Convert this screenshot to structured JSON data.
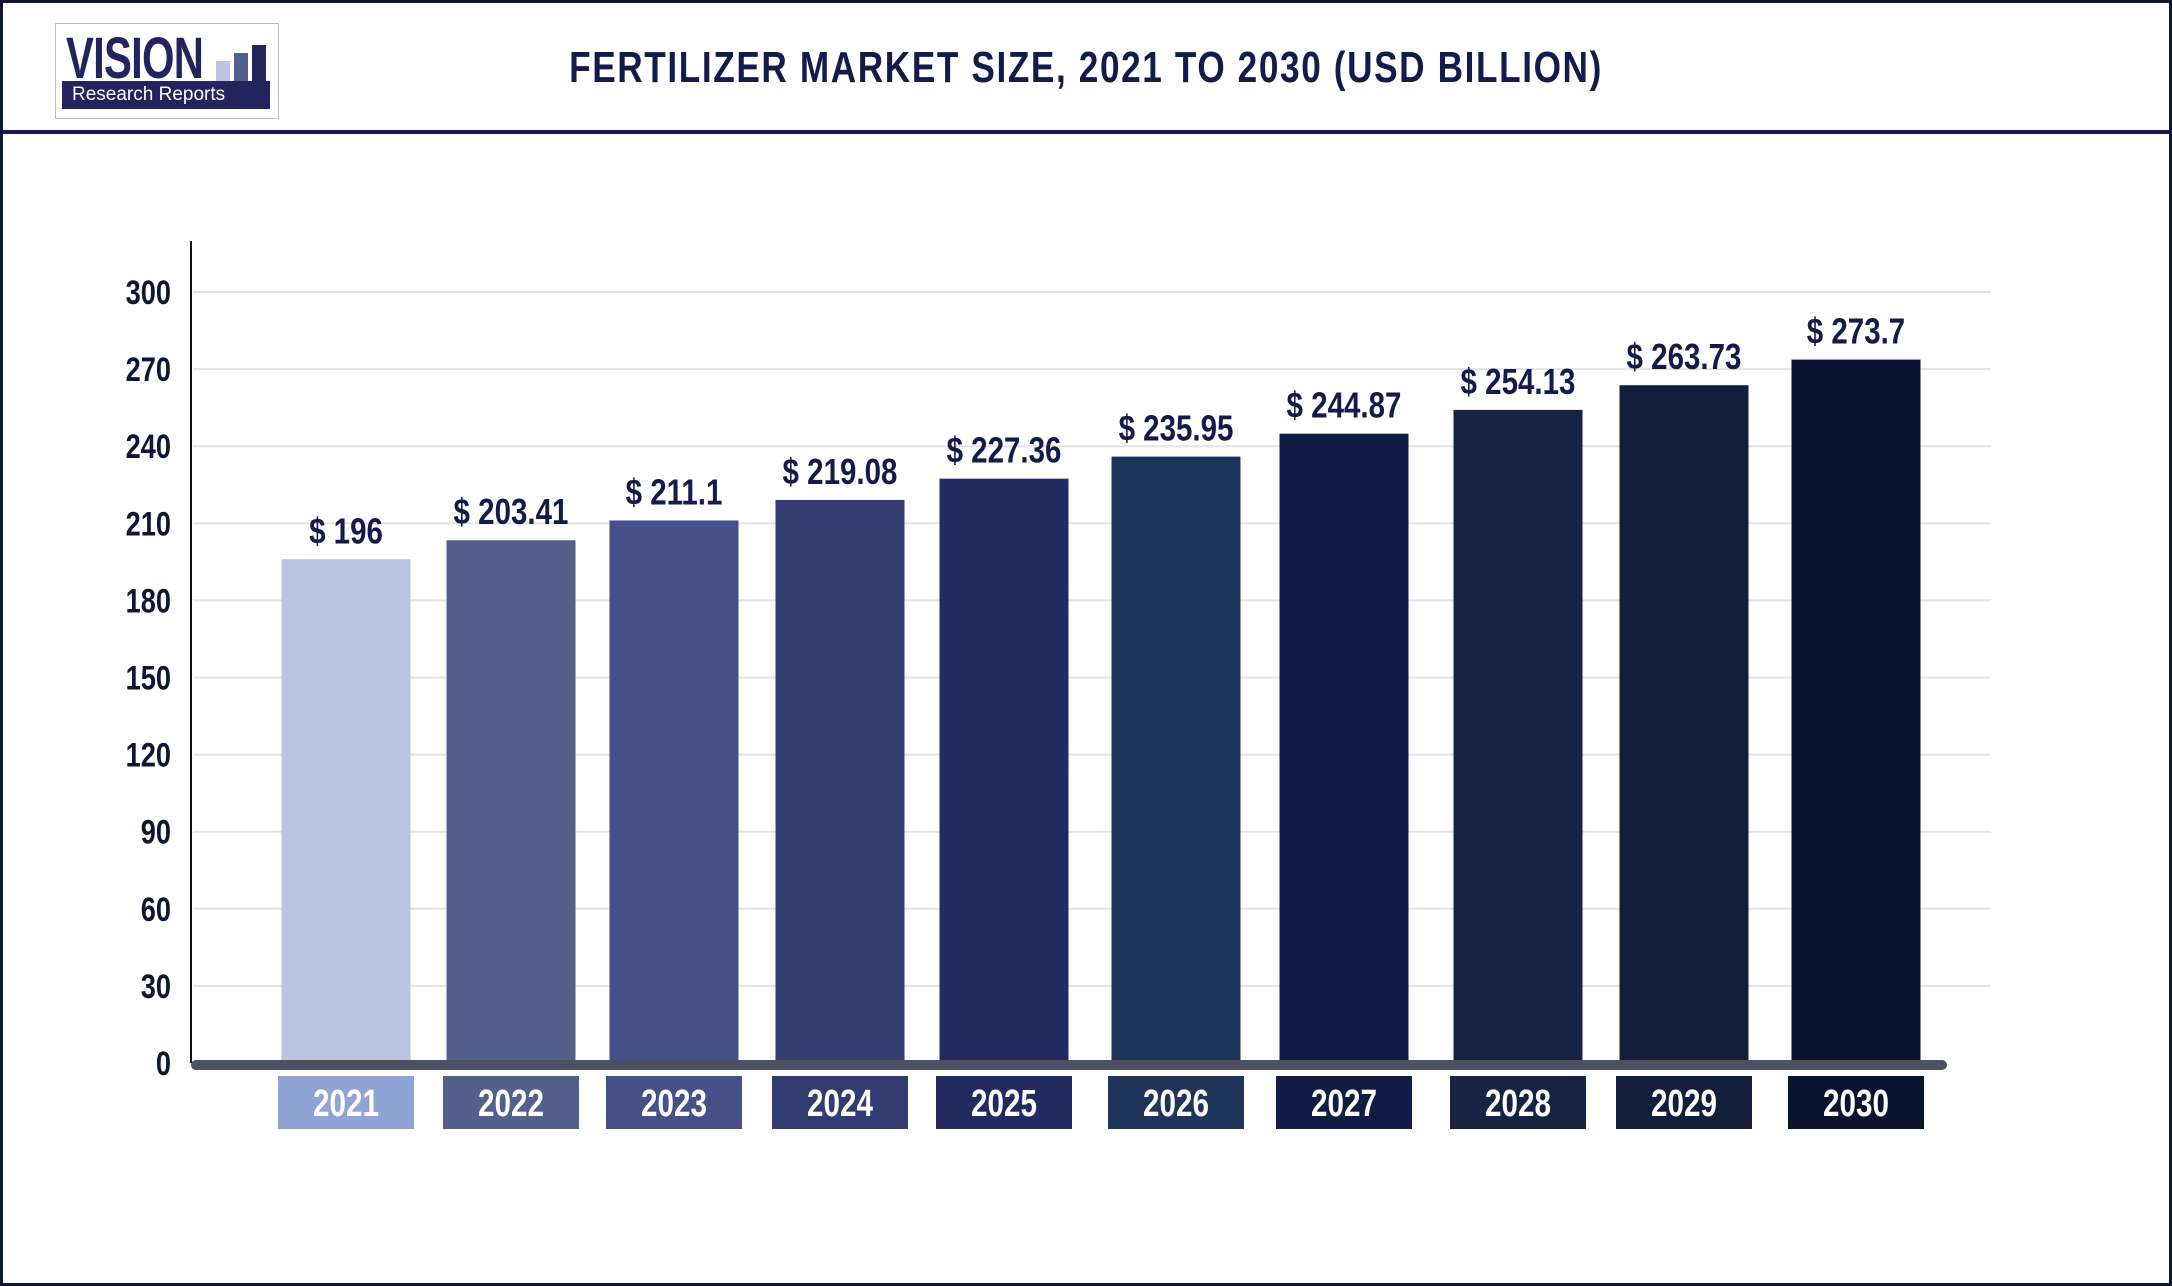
{
  "header": {
    "title": "FERTILIZER MARKET SIZE, 2021 TO 2030 (USD BILLION)",
    "logo_text": "VISION",
    "logo_subtext": "Research Reports"
  },
  "chart_data": {
    "type": "bar",
    "title": "FERTILIZER MARKET SIZE, 2021 TO 2030 (USD BILLION)",
    "xlabel": "",
    "ylabel": "",
    "categories": [
      "2021",
      "2022",
      "2023",
      "2024",
      "2025",
      "2026",
      "2027",
      "2028",
      "2029",
      "2030"
    ],
    "values": [
      196,
      203.41,
      211.1,
      219.08,
      227.36,
      235.95,
      244.87,
      254.13,
      263.73,
      273.7
    ],
    "data_labels": [
      "$ 196",
      "$ 203.41",
      "$ 211.1",
      "$ 219.08",
      "$ 227.36",
      "$ 235.95",
      "$ 244.87",
      "$ 254.13",
      "$ 263.73",
      "$ 273.7"
    ],
    "ylim": [
      0,
      300
    ],
    "yticks": [
      0,
      30,
      60,
      90,
      120,
      150,
      180,
      210,
      240,
      270,
      300
    ],
    "grid": true,
    "bar_colors": [
      "#bac3e2",
      "#54608c",
      "#454f88",
      "#323c70",
      "#232a60",
      "#1f3459",
      "#111c45",
      "#162343",
      "#121e3c",
      "#0b1232"
    ],
    "label_colors": [
      "#8fa3d5",
      "#54608c",
      "#454f88",
      "#323c70",
      "#232a60",
      "#1f3459",
      "#111c45",
      "#162343",
      "#121e3c",
      "#0b1232"
    ]
  }
}
